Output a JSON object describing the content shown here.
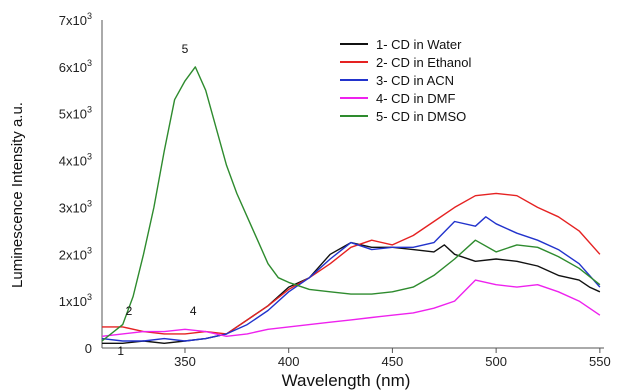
{
  "chart_data": {
    "type": "line",
    "title": "",
    "xlabel": "Wavelength (nm)",
    "ylabel": "Luminescence Intensity a.u.",
    "xlim": [
      310,
      552
    ],
    "ylim": [
      0,
      7000
    ],
    "x_ticks": [
      {
        "value": 350,
        "label": "350"
      },
      {
        "value": 400,
        "label": "400"
      },
      {
        "value": 450,
        "label": "450"
      },
      {
        "value": 500,
        "label": "500"
      },
      {
        "value": 550,
        "label": "550"
      }
    ],
    "y_ticks": [
      {
        "value": 0,
        "base": "0",
        "exp": ""
      },
      {
        "value": 1000,
        "base": "1x10",
        "exp": "3"
      },
      {
        "value": 2000,
        "base": "2x10",
        "exp": "3"
      },
      {
        "value": 3000,
        "base": "3x10",
        "exp": "3"
      },
      {
        "value": 4000,
        "base": "4x10",
        "exp": "3"
      },
      {
        "value": 5000,
        "base": "5x10",
        "exp": "3"
      },
      {
        "value": 6000,
        "base": "6x10",
        "exp": "3"
      },
      {
        "value": 7000,
        "base": "7x10",
        "exp": "3"
      }
    ],
    "grid": false,
    "legend_position": "top-right",
    "series": [
      {
        "name": "1- CD in Water",
        "color": "#111111",
        "x": [
          310,
          320,
          330,
          340,
          350,
          360,
          370,
          380,
          390,
          400,
          410,
          420,
          430,
          440,
          450,
          460,
          470,
          475,
          480,
          490,
          500,
          510,
          520,
          530,
          540,
          545,
          550
        ],
        "y": [
          100,
          100,
          150,
          100,
          150,
          200,
          300,
          600,
          900,
          1300,
          1500,
          2000,
          2250,
          2150,
          2150,
          2100,
          2050,
          2200,
          2000,
          1850,
          1900,
          1850,
          1750,
          1550,
          1450,
          1300,
          1200
        ]
      },
      {
        "name": "2- CD in Ethanol",
        "color": "#e52222",
        "x": [
          310,
          320,
          330,
          340,
          350,
          360,
          370,
          380,
          390,
          400,
          410,
          420,
          430,
          440,
          450,
          460,
          470,
          480,
          490,
          500,
          510,
          520,
          530,
          540,
          550
        ],
        "y": [
          450,
          450,
          350,
          300,
          300,
          350,
          300,
          600,
          900,
          1250,
          1500,
          1800,
          2150,
          2300,
          2200,
          2400,
          2700,
          3000,
          3250,
          3300,
          3250,
          3000,
          2800,
          2500,
          2000
        ]
      },
      {
        "name": "3- CD in ACN",
        "color": "#2233cc",
        "x": [
          310,
          320,
          330,
          340,
          350,
          360,
          370,
          380,
          390,
          400,
          410,
          420,
          430,
          440,
          450,
          460,
          470,
          480,
          490,
          495,
          500,
          510,
          520,
          530,
          540,
          550
        ],
        "y": [
          200,
          150,
          150,
          200,
          150,
          200,
          300,
          500,
          800,
          1200,
          1500,
          1900,
          2250,
          2100,
          2150,
          2150,
          2250,
          2700,
          2600,
          2800,
          2650,
          2450,
          2300,
          2100,
          1800,
          1300
        ]
      },
      {
        "name": "4- CD in DMF",
        "color": "#ee22ee",
        "x": [
          310,
          320,
          330,
          340,
          350,
          360,
          370,
          380,
          390,
          400,
          410,
          420,
          430,
          440,
          450,
          460,
          470,
          480,
          490,
          500,
          510,
          520,
          530,
          540,
          550
        ],
        "y": [
          250,
          300,
          350,
          350,
          400,
          350,
          250,
          300,
          400,
          450,
          500,
          550,
          600,
          650,
          700,
          750,
          850,
          1000,
          1450,
          1350,
          1300,
          1350,
          1200,
          1000,
          700
        ]
      },
      {
        "name": "5- CD in DMSO",
        "color": "#2e8b2e",
        "x": [
          310,
          320,
          325,
          330,
          335,
          340,
          345,
          350,
          355,
          360,
          365,
          370,
          375,
          380,
          385,
          390,
          395,
          400,
          410,
          420,
          430,
          440,
          450,
          460,
          470,
          480,
          490,
          500,
          510,
          520,
          530,
          540,
          550
        ],
        "y": [
          150,
          500,
          1100,
          2000,
          3000,
          4200,
          5300,
          5700,
          6000,
          5500,
          4700,
          3900,
          3300,
          2800,
          2300,
          1800,
          1500,
          1400,
          1250,
          1200,
          1150,
          1150,
          1200,
          1300,
          1550,
          1900,
          2300,
          2050,
          2200,
          2150,
          1950,
          1700,
          1350
        ]
      }
    ],
    "annotations": [
      {
        "text": "5",
        "x": 350,
        "y": 6300
      },
      {
        "text": "2",
        "x": 323,
        "y": 700
      },
      {
        "text": "4",
        "x": 354,
        "y": 700
      },
      {
        "text": "1",
        "x": 319,
        "y": -150
      }
    ]
  }
}
